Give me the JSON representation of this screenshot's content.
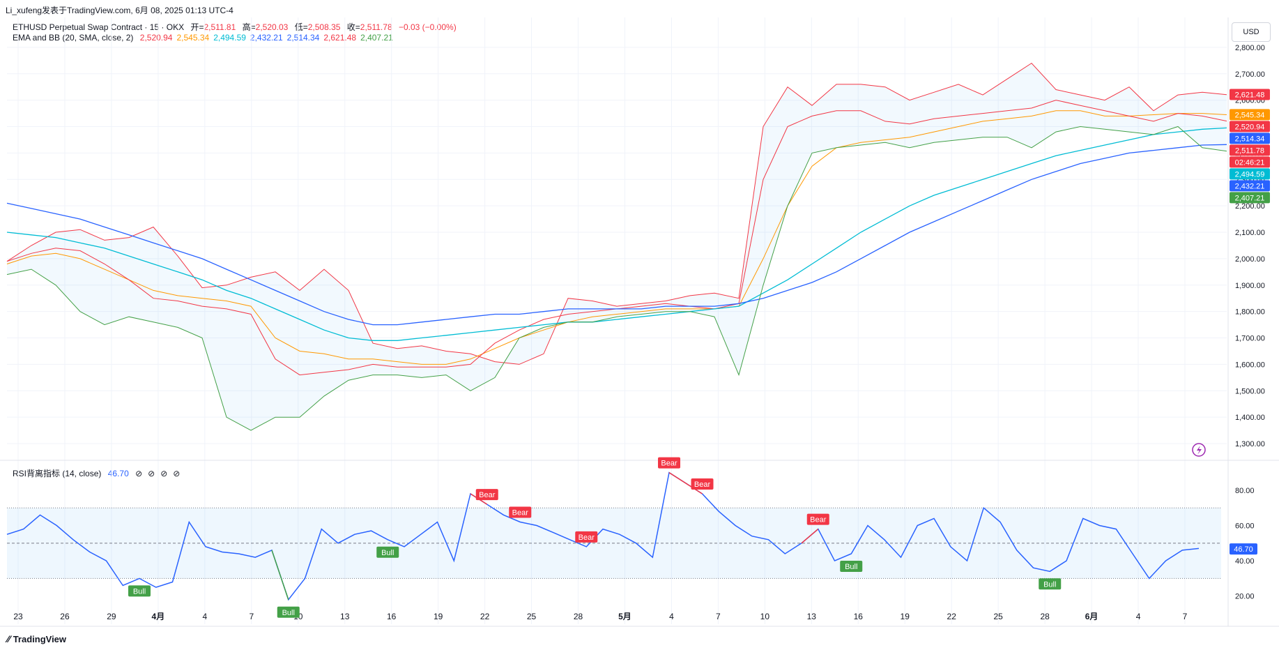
{
  "header": {
    "publisher_line": "Li_xufeng发表于TradingView.com, 6月 08, 2025 01:13 UTC-4"
  },
  "main_legend": {
    "symbol": "ETHUSD Perpetual Swap Contract · 15 · OKX",
    "open_label": "开=",
    "open": "2,511.81",
    "high_label": "高=",
    "high": "2,520.03",
    "low_label": "低=",
    "low": "2,508.35",
    "close_label": "收=",
    "close": "2,511.78",
    "change": "−0.03 (−0.00%)"
  },
  "ema_legend": {
    "title": "EMA and BB (20, SMA, close, 2)",
    "values": [
      {
        "text": "2,520.94",
        "color": "#f23645"
      },
      {
        "text": "2,545.34",
        "color": "#ff9800"
      },
      {
        "text": "2,494.59",
        "color": "#00bcd4"
      },
      {
        "text": "2,432.21",
        "color": "#2962ff"
      },
      {
        "text": "2,514.34",
        "color": "#2962ff"
      },
      {
        "text": "2,621.48",
        "color": "#f23645"
      },
      {
        "text": "2,407.21",
        "color": "#43a047"
      }
    ]
  },
  "rsi_legend": {
    "title": "RSI背离指标 (14, close)",
    "value": "46.70",
    "icons": [
      "hidden-icon",
      "hidden-icon",
      "hidden-icon",
      "hidden-icon"
    ]
  },
  "currency_button": "USD",
  "price_axis_labels": [
    "2,800.00",
    "2,700.00",
    "2,600.00",
    "2,500.00",
    "2,400.00",
    "2,300.00",
    "2,200.00",
    "2,100.00",
    "2,000.00",
    "1,900.00",
    "1,800.00",
    "1,700.00",
    "1,600.00",
    "1,500.00",
    "1,400.00",
    "1,300.00"
  ],
  "rsi_axis_labels": [
    "80.00",
    "60.00",
    "40.00",
    "20.00"
  ],
  "time_axis_labels": [
    "23",
    "26",
    "29",
    "4月",
    "4",
    "7",
    "10",
    "13",
    "16",
    "19",
    "22",
    "25",
    "28",
    "5月",
    "4",
    "7",
    "10",
    "13",
    "16",
    "19",
    "22",
    "25",
    "28",
    "6月",
    "4",
    "7"
  ],
  "price_badges": [
    {
      "text": "2,621.48",
      "color": "#f23645"
    },
    {
      "text": "2,545.34",
      "color": "#ff9800"
    },
    {
      "text": "2,520.94",
      "color": "#f23645"
    },
    {
      "text": "2,514.34",
      "color": "#2962ff"
    },
    {
      "text": "2,511.78",
      "color": "#f23645"
    },
    {
      "text": "02:46:21",
      "color": "#f23645"
    },
    {
      "text": "2,494.59",
      "color": "#00bcd4"
    },
    {
      "text": "2,432.21",
      "color": "#2962ff"
    },
    {
      "text": "2,407.21",
      "color": "#43a047"
    }
  ],
  "rsi_badge": {
    "text": "46.70",
    "color": "#2962ff"
  },
  "divergence_labels": [
    {
      "text": "Bull",
      "kind": "bull"
    },
    {
      "text": "Bull",
      "kind": "bull"
    },
    {
      "text": "Bull",
      "kind": "bull"
    },
    {
      "text": "Bear",
      "kind": "bear"
    },
    {
      "text": "Bear",
      "kind": "bear"
    },
    {
      "text": "Bear",
      "kind": "bear"
    },
    {
      "text": "Bear",
      "kind": "bear"
    },
    {
      "text": "Bear",
      "kind": "bear"
    },
    {
      "text": "Bear",
      "kind": "bear"
    },
    {
      "text": "Bull",
      "kind": "bull"
    },
    {
      "text": "Bull",
      "kind": "bull"
    }
  ],
  "footer": {
    "brand": "TradingView"
  },
  "colors": {
    "bb_upper": "#f23645",
    "bb_lower": "#43a047",
    "bb_basis": "#f23645",
    "ema_orange": "#ff9800",
    "ema_cyan": "#00bcd4",
    "ema_blue": "#2962ff",
    "rsi_line": "#2962ff",
    "bull": "#43a047",
    "bear": "#f23645"
  },
  "chart_data": [
    {
      "type": "line",
      "title": "ETHUSD Perpetual Swap Contract · 15 · OKX",
      "ylim": [
        1250,
        2900
      ],
      "x_range": [
        "3月23",
        "6月7"
      ],
      "grid": true,
      "series": [
        {
          "name": "BB upper",
          "values": [
            1990,
            2050,
            2100,
            2110,
            2070,
            2080,
            2120,
            2010,
            1890,
            1900,
            1930,
            1950,
            1880,
            1960,
            1880,
            1680,
            1660,
            1670,
            1650,
            1640,
            1610,
            1600,
            1640,
            1850,
            1840,
            1820,
            1830,
            1840,
            1860,
            1870,
            1850,
            2500,
            2650,
            2580,
            2660,
            2660,
            2650,
            2600,
            2630,
            2660,
            2620,
            2680,
            2740,
            2640,
            2620,
            2600,
            2650,
            2560,
            2620,
            2630,
            2621
          ]
        },
        {
          "name": "EMA orange",
          "values": [
            1980,
            2010,
            2020,
            2000,
            1960,
            1920,
            1880,
            1860,
            1850,
            1840,
            1820,
            1700,
            1650,
            1640,
            1620,
            1620,
            1610,
            1600,
            1600,
            1620,
            1660,
            1700,
            1730,
            1760,
            1780,
            1790,
            1800,
            1810,
            1810,
            1810,
            1820,
            2000,
            2200,
            2350,
            2420,
            2440,
            2450,
            2460,
            2480,
            2500,
            2520,
            2530,
            2540,
            2560,
            2560,
            2540,
            2540,
            2545,
            2550,
            2550,
            2545
          ]
        },
        {
          "name": "BB basis",
          "values": [
            1990,
            2020,
            2040,
            2030,
            1980,
            1920,
            1850,
            1840,
            1820,
            1810,
            1790,
            1620,
            1560,
            1570,
            1580,
            1600,
            1590,
            1590,
            1590,
            1600,
            1680,
            1730,
            1770,
            1790,
            1800,
            1810,
            1820,
            1830,
            1820,
            1810,
            1830,
            2300,
            2500,
            2540,
            2560,
            2560,
            2520,
            2510,
            2530,
            2540,
            2550,
            2560,
            2570,
            2600,
            2580,
            2560,
            2540,
            2520,
            2550,
            2540,
            2521
          ]
        },
        {
          "name": "EMA cyan",
          "values": [
            2100,
            2090,
            2080,
            2060,
            2040,
            2010,
            1980,
            1950,
            1920,
            1880,
            1850,
            1810,
            1770,
            1730,
            1700,
            1690,
            1690,
            1700,
            1710,
            1720,
            1730,
            1740,
            1750,
            1760,
            1760,
            1770,
            1780,
            1790,
            1800,
            1810,
            1820,
            1870,
            1920,
            1980,
            2040,
            2100,
            2150,
            2200,
            2240,
            2270,
            2300,
            2330,
            2360,
            2390,
            2410,
            2430,
            2450,
            2470,
            2480,
            2490,
            2495
          ]
        },
        {
          "name": "EMA blue",
          "values": [
            2210,
            2190,
            2170,
            2150,
            2120,
            2090,
            2060,
            2030,
            2000,
            1960,
            1920,
            1880,
            1840,
            1800,
            1770,
            1750,
            1750,
            1760,
            1770,
            1780,
            1790,
            1790,
            1800,
            1810,
            1810,
            1810,
            1810,
            1820,
            1820,
            1820,
            1830,
            1850,
            1880,
            1910,
            1950,
            2000,
            2050,
            2100,
            2140,
            2180,
            2220,
            2260,
            2300,
            2330,
            2360,
            2380,
            2400,
            2410,
            2420,
            2430,
            2432
          ]
        },
        {
          "name": "BB lower",
          "values": [
            1940,
            1960,
            1900,
            1800,
            1750,
            1780,
            1760,
            1740,
            1700,
            1400,
            1350,
            1400,
            1400,
            1480,
            1540,
            1560,
            1560,
            1550,
            1560,
            1500,
            1550,
            1700,
            1740,
            1760,
            1760,
            1780,
            1790,
            1800,
            1800,
            1780,
            1560,
            1900,
            2200,
            2400,
            2420,
            2430,
            2440,
            2420,
            2440,
            2450,
            2460,
            2460,
            2420,
            2480,
            2500,
            2490,
            2480,
            2470,
            2500,
            2420,
            2407
          ]
        }
      ]
    },
    {
      "type": "line",
      "title": "RSI背离指标 (14, close)",
      "ylim": [
        10,
        95
      ],
      "series": [
        {
          "name": "RSI",
          "values": [
            55,
            58,
            66,
            60,
            52,
            45,
            40,
            26,
            30,
            25,
            28,
            62,
            48,
            45,
            44,
            42,
            46,
            18,
            30,
            58,
            50,
            55,
            57,
            52,
            48,
            55,
            62,
            40,
            78,
            72,
            66,
            62,
            60,
            56,
            52,
            48,
            58,
            55,
            50,
            42,
            90,
            84,
            78,
            68,
            60,
            54,
            52,
            44,
            50,
            58,
            40,
            44,
            60,
            52,
            42,
            60,
            64,
            48,
            40,
            70,
            62,
            46,
            36,
            34,
            40,
            64,
            60,
            58,
            44,
            30,
            40,
            46,
            47
          ]
        },
        {
          "name": "Overbought",
          "values": [
            70
          ]
        },
        {
          "name": "Midline",
          "values": [
            50
          ]
        },
        {
          "name": "Oversold",
          "values": [
            30
          ]
        }
      ]
    }
  ]
}
